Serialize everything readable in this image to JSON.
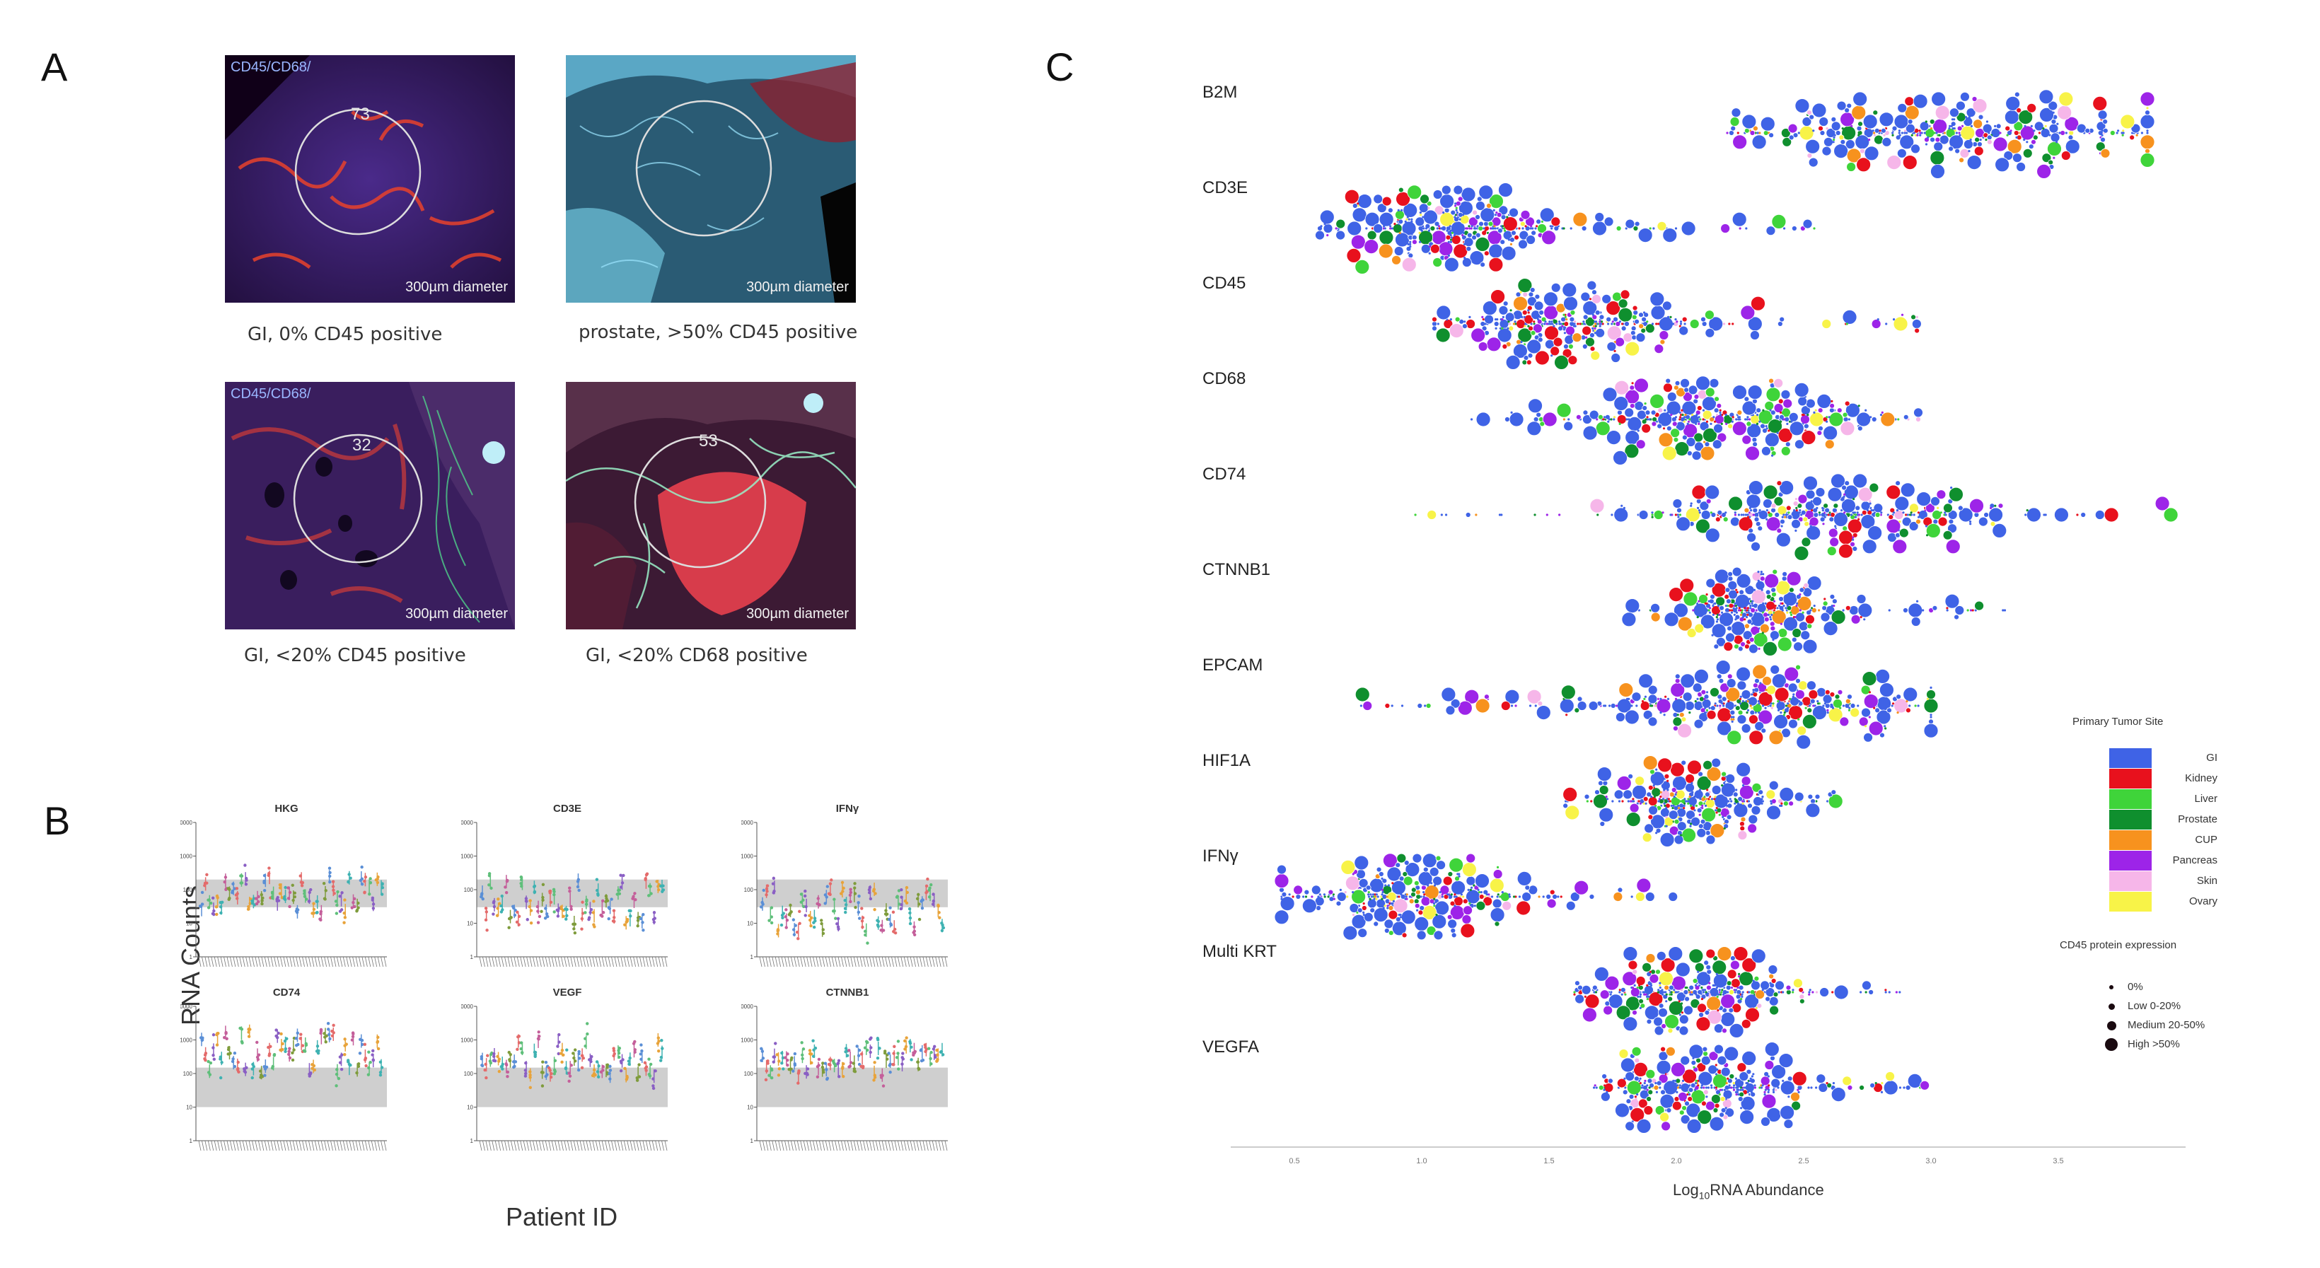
{
  "panel_a": {
    "letter": "A",
    "images": [
      {
        "top_label": "CD45/CD68/",
        "circle_number": "73",
        "scale_label": "300µm diameter",
        "caption": "GI, 0% CD45 positive"
      },
      {
        "top_label": "",
        "circle_number": "",
        "scale_label": "300µm diameter",
        "caption": "prostate, >50% CD45 positive"
      },
      {
        "top_label": "CD45/CD68/",
        "circle_number": "32",
        "scale_label": "300µm diameter",
        "caption": "GI, <20% CD45 positive"
      },
      {
        "top_label": "",
        "circle_number": "53",
        "scale_label": "300µm diameter",
        "caption": "GI, <20% CD68 positive"
      }
    ]
  },
  "panel_b": {
    "letter": "B",
    "y_axis_title": "RNA Counts",
    "x_axis_title": "Patient ID",
    "y_ticks": [
      "10000",
      "1000",
      "100",
      "10",
      "1"
    ],
    "chart_data": [
      {
        "type": "scatter",
        "title": "HKG",
        "yscale": "log",
        "ylim": [
          1,
          10000
        ],
        "band": [
          30,
          200
        ],
        "typical_range": [
          20,
          250
        ]
      },
      {
        "type": "scatter",
        "title": "CD3E",
        "yscale": "log",
        "ylim": [
          1,
          10000
        ],
        "band": [
          30,
          200
        ],
        "typical_range": [
          8,
          200
        ]
      },
      {
        "type": "scatter",
        "title": "IFNγ",
        "yscale": "log",
        "ylim": [
          1,
          10000
        ],
        "band": [
          30,
          200
        ],
        "typical_range": [
          5,
          120
        ]
      },
      {
        "type": "scatter",
        "title": "CD74",
        "yscale": "log",
        "ylim": [
          1,
          10000
        ],
        "band": [
          10,
          150
        ],
        "typical_range": [
          100,
          2000
        ]
      },
      {
        "type": "scatter",
        "title": "VEGF",
        "yscale": "log",
        "ylim": [
          1,
          10000
        ],
        "band": [
          10,
          150
        ],
        "typical_range": [
          80,
          1000
        ]
      },
      {
        "type": "scatter",
        "title": "CTNNB1",
        "yscale": "log",
        "ylim": [
          1,
          10000
        ],
        "band": [
          10,
          150
        ],
        "typical_range": [
          80,
          700
        ]
      }
    ]
  },
  "panel_c": {
    "letter": "C",
    "x_axis_title": "Log10RNA Abundance",
    "x_axis_title_parts": {
      "pre": "Log",
      "sub": "10",
      "post": "RNA Abundance"
    },
    "x_ticks": [
      "0.5",
      "1.0",
      "1.5",
      "2.0",
      "2.5",
      "3.0",
      "3.5"
    ],
    "legend": {
      "site_title": "Primary Tumor Site",
      "sites": [
        {
          "name": "GI",
          "color": "#3f63e6"
        },
        {
          "name": "Kidney",
          "color": "#e8111d"
        },
        {
          "name": "Liver",
          "color": "#3fd43a"
        },
        {
          "name": "Prostate",
          "color": "#0f8f2e"
        },
        {
          "name": "CUP",
          "color": "#f7921e"
        },
        {
          "name": "Pancreas",
          "color": "#9d24e8"
        },
        {
          "name": "Skin",
          "color": "#f6b6e9"
        },
        {
          "name": "Ovary",
          "color": "#f8f348"
        }
      ],
      "size_title": "CD45 protein expression",
      "sizes": [
        {
          "name": "0%"
        },
        {
          "name": "Low 0-20%"
        },
        {
          "name": "Medium 20-50%"
        },
        {
          "name": "High >50%"
        }
      ]
    },
    "chart_data": {
      "type": "scatter",
      "subtype": "beeswarm",
      "xlabel": "Log10RNA Abundance",
      "xlim": [
        0.25,
        4.0
      ],
      "genes": [
        {
          "name": "B2M",
          "min": 2.2,
          "max": 3.85,
          "center": 3.15,
          "spread": 0.38
        },
        {
          "name": "CD3E",
          "min": 0.6,
          "max": 2.55,
          "center": 1.15,
          "spread": 0.2
        },
        {
          "name": "CD45",
          "min": 1.05,
          "max": 2.95,
          "center": 1.55,
          "spread": 0.22
        },
        {
          "name": "CD68",
          "min": 1.15,
          "max": 2.95,
          "center": 2.15,
          "spread": 0.28
        },
        {
          "name": "CD74",
          "min": 0.95,
          "max": 3.95,
          "center": 2.55,
          "spread": 0.35
        },
        {
          "name": "CTNNB1",
          "min": 1.8,
          "max": 3.3,
          "center": 2.3,
          "spread": 0.12
        },
        {
          "name": "EPCAM",
          "min": 0.75,
          "max": 3.0,
          "center": 2.3,
          "spread": 0.35
        },
        {
          "name": "HIF1A",
          "min": 1.55,
          "max": 2.65,
          "center": 2.05,
          "spread": 0.15
        },
        {
          "name": "IFNγ",
          "min": 0.45,
          "max": 2.05,
          "center": 0.95,
          "spread": 0.2
        },
        {
          "name": "Multi KRT",
          "min": 1.6,
          "max": 2.9,
          "center": 2.05,
          "spread": 0.2
        },
        {
          "name": "VEGFA",
          "min": 1.65,
          "max": 3.05,
          "center": 2.1,
          "spread": 0.18
        }
      ]
    }
  }
}
